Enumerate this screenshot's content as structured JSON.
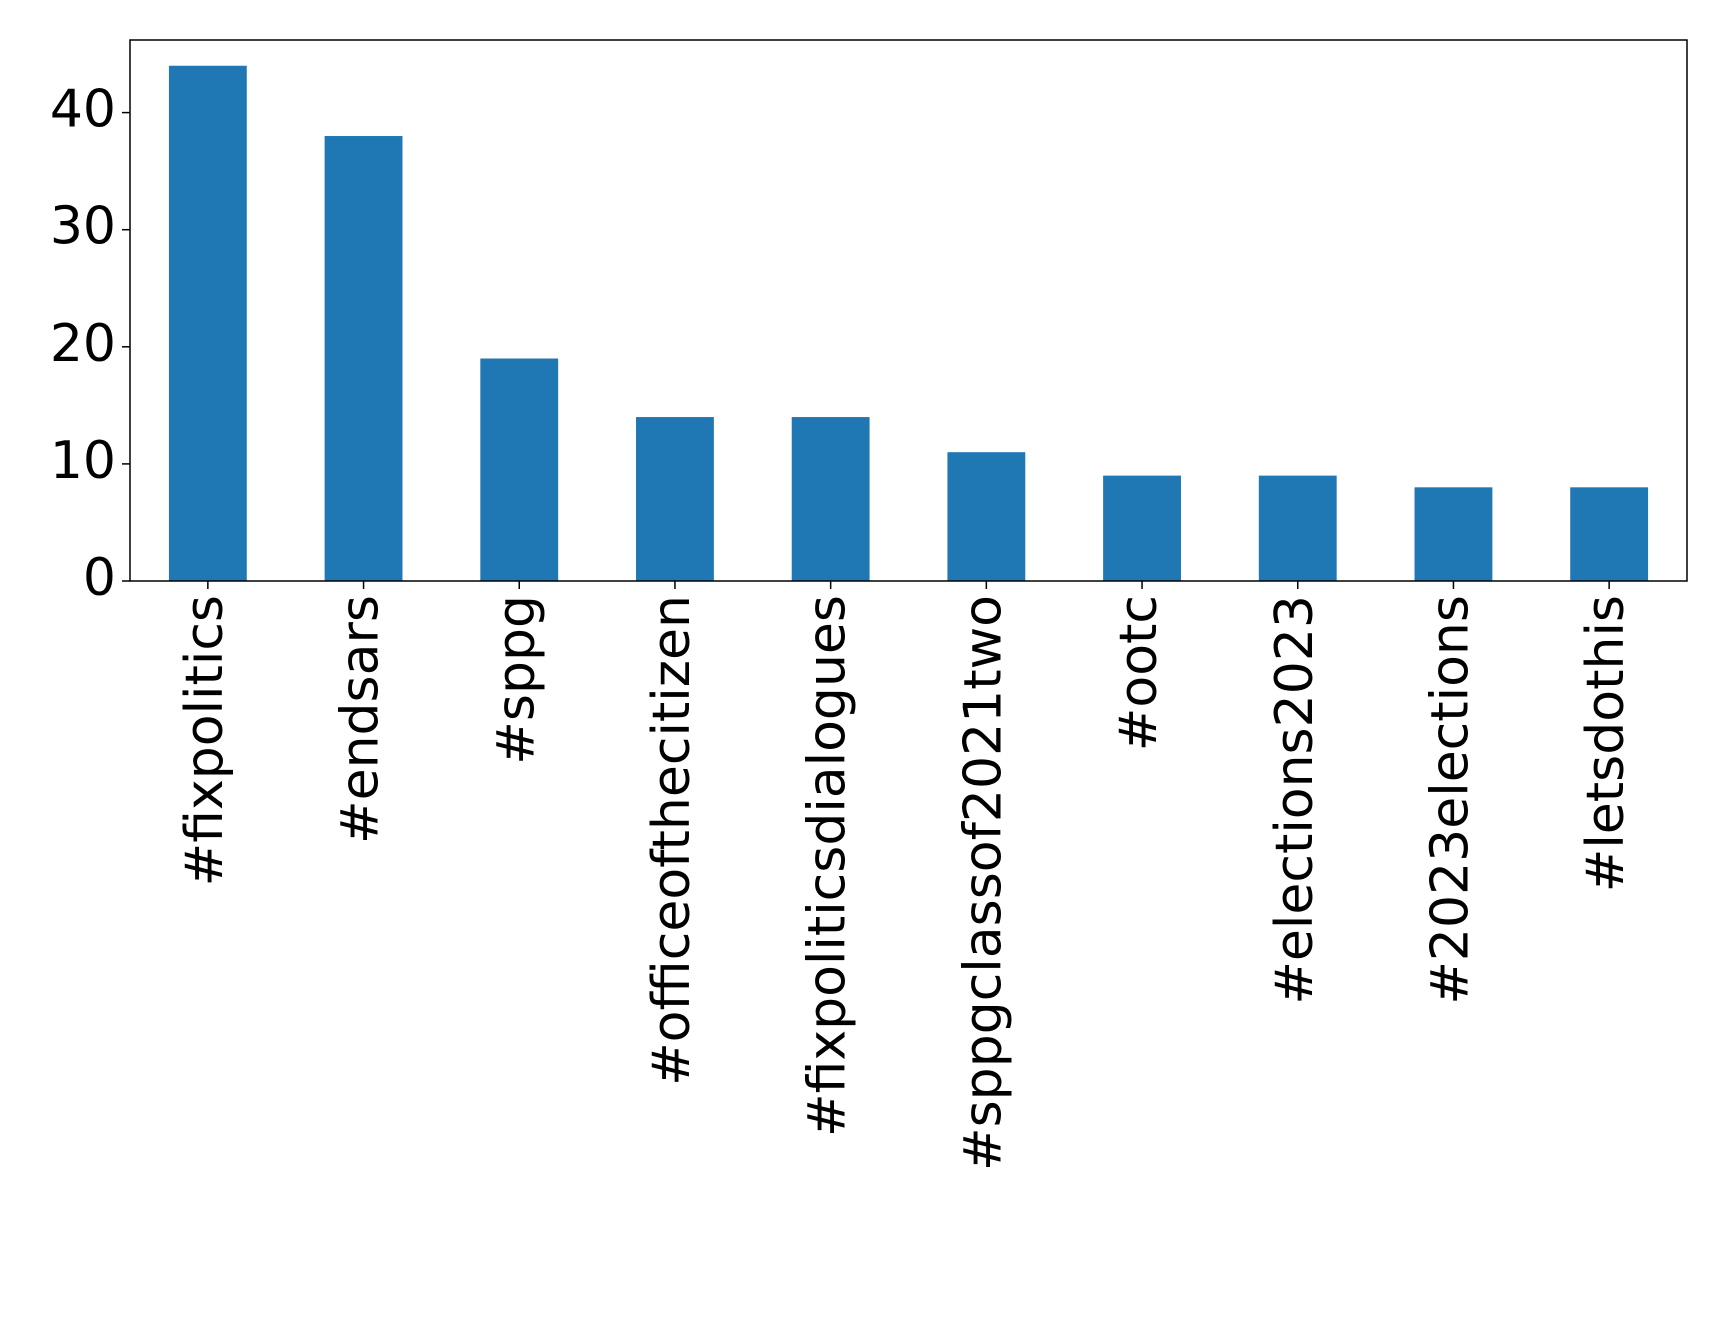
{
  "chart_data": {
    "type": "bar",
    "categories": [
      "#fixpolitics",
      "#endsars",
      "#sppg",
      "#officeofthecitizen",
      "#fixpoliticsdialogues",
      "#sppgclassof2021two",
      "#ootc",
      "#elections2023",
      "#2023elections",
      "#letsdothis"
    ],
    "values": [
      44,
      38,
      19,
      14,
      14,
      11,
      9,
      9,
      8,
      8
    ],
    "color": "#1f77b4",
    "ylim": [
      0,
      46.2
    ],
    "yticks": [
      0,
      10,
      20,
      30,
      40
    ],
    "grid": false
  }
}
